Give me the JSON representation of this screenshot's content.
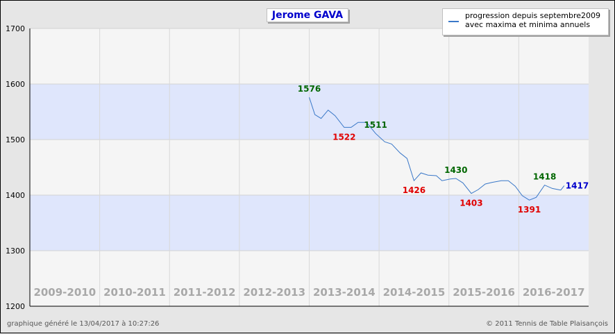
{
  "chart_data": {
    "type": "line",
    "title": "Jerome GAVA",
    "legend": {
      "line1": "progression depuis septembre2009",
      "line2": "avec maxima et minima annuels",
      "position": "top-right"
    },
    "ylim": [
      1200,
      1700
    ],
    "yticks": [
      1200,
      1300,
      1400,
      1500,
      1600,
      1700
    ],
    "seasons": [
      "2009-2010",
      "2010-2011",
      "2011-2012",
      "2012-2013",
      "2013-2014",
      "2014-2015",
      "2015-2016",
      "2016-2017"
    ],
    "grid": true,
    "series": [
      {
        "color": "#3a78c8",
        "x": [
          4.0,
          4.08,
          4.17,
          4.27,
          4.37,
          4.5,
          4.6,
          4.7,
          4.82,
          4.95,
          5.08,
          5.18,
          5.3,
          5.4,
          5.5,
          5.6,
          5.7,
          5.82,
          5.9,
          6.02,
          6.1,
          6.2,
          6.32,
          6.42,
          6.52,
          6.62,
          6.75,
          6.85,
          6.95,
          7.05,
          7.15,
          7.25,
          7.37,
          7.48,
          7.6
        ],
        "y": [
          1576,
          1545,
          1538,
          1553,
          1543,
          1522,
          1522,
          1531,
          1531,
          1511,
          1496,
          1492,
          1476,
          1466,
          1426,
          1440,
          1436,
          1435,
          1426,
          1429,
          1430,
          1422,
          1403,
          1410,
          1420,
          1423,
          1426,
          1426,
          1416,
          1399,
          1391,
          1396,
          1418,
          1412,
          1409
        ]
      },
      {
        "color": "#3a78c8",
        "x": [
          7.6,
          7.65
        ],
        "y": [
          1409,
          1417
        ]
      }
    ],
    "annotations": [
      {
        "text": "1576",
        "x": 4.0,
        "y": 1576,
        "type": "max",
        "color": "#006600"
      },
      {
        "text": "1522",
        "x": 4.5,
        "y": 1522,
        "type": "min",
        "color": "#e00000"
      },
      {
        "text": "1511",
        "x": 4.95,
        "y": 1511,
        "type": "max",
        "color": "#006600"
      },
      {
        "text": "1426",
        "x": 5.5,
        "y": 1426,
        "type": "min",
        "color": "#e00000"
      },
      {
        "text": "1430",
        "x": 6.1,
        "y": 1430,
        "type": "max",
        "color": "#006600"
      },
      {
        "text": "1403",
        "x": 6.32,
        "y": 1403,
        "type": "min",
        "color": "#e00000"
      },
      {
        "text": "1391",
        "x": 7.15,
        "y": 1391,
        "type": "min",
        "color": "#e00000"
      },
      {
        "text": "1418",
        "x": 7.37,
        "y": 1418,
        "type": "max",
        "color": "#006600"
      },
      {
        "text": "1417",
        "x": 7.65,
        "y": 1417,
        "type": "current",
        "color": "#0000cc"
      }
    ]
  },
  "footer": {
    "left": "graphique généré le 13/04/2017 à 10:27:26",
    "right": "© 2011 Tennis de Table Plaisançois"
  }
}
